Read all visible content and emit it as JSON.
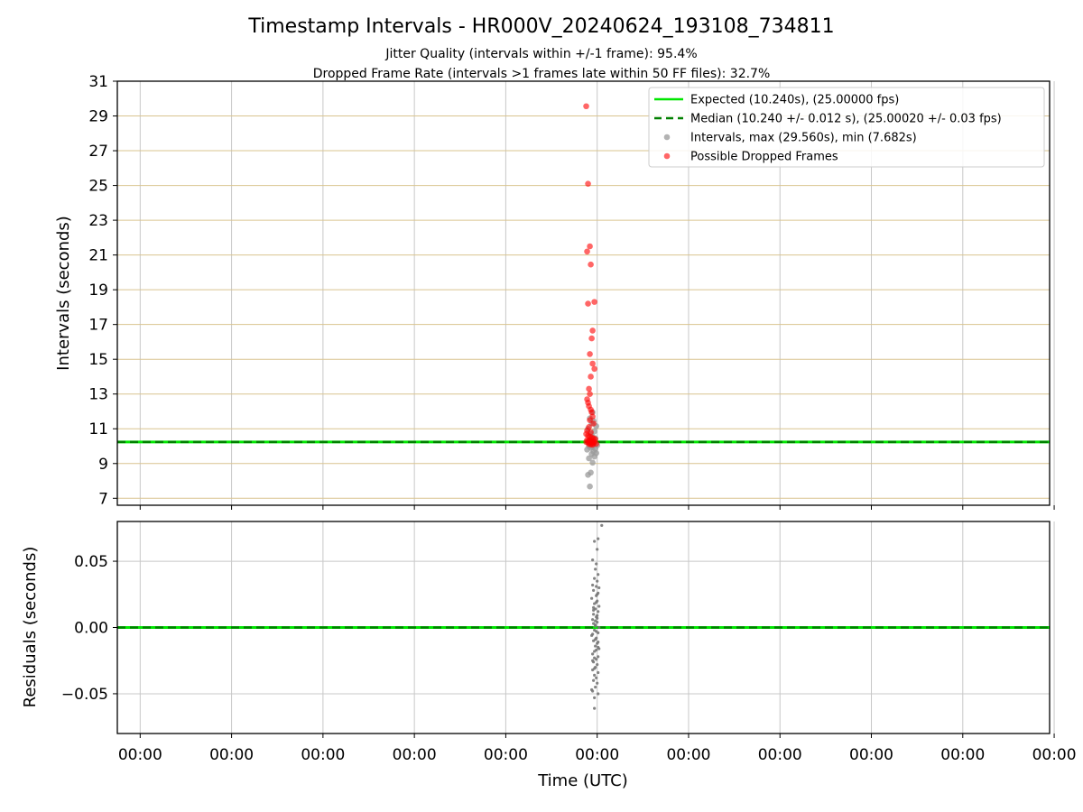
{
  "chart_data": [
    {
      "type": "scatter",
      "title": "Timestamp Intervals - HR000V_20240624_193108_734811",
      "subtitle_lines": [
        "Jitter Quality (intervals within +/-1 frame): 95.4%",
        "Dropped Frame Rate (intervals >1 frames late within 50 FF files): 32.7%"
      ],
      "ylabel": "Intervals (seconds)",
      "ylim": [
        6.6,
        31.0
      ],
      "yticks": [
        7,
        9,
        11,
        13,
        15,
        17,
        19,
        21,
        23,
        25,
        27,
        29,
        31
      ],
      "ytick_labels": [
        "7",
        "9",
        "11",
        "13",
        "15",
        "17",
        "19",
        "21",
        "23",
        "25",
        "27",
        "29",
        "31"
      ],
      "xlim": [
        0,
        10.2
      ],
      "xticks": [
        0.25,
        1.25,
        2.25,
        3.25,
        4.25,
        5.25,
        6.25,
        7.25,
        8.25,
        9.25,
        10.25
      ],
      "grid": true,
      "legend_position": "top-right",
      "lines": [
        {
          "name": "Expected (10.240s), (25.00000 fps)",
          "y": 10.24,
          "color": "#00e600",
          "style": "solid"
        },
        {
          "name": "Median (10.240 +/- 0.012 s), (25.00020 +/- 0.03 fps)",
          "y": 10.24,
          "color": "#008000",
          "style": "dashed"
        }
      ],
      "series": [
        {
          "name": "Intervals, max (29.560s), min (7.682s)",
          "color": "#999999",
          "x": [
            5.17,
            5.15,
            5.18,
            5.2,
            5.16,
            5.22,
            5.19,
            5.24,
            5.21,
            5.14,
            5.23,
            5.18,
            5.2,
            5.16,
            5.25,
            5.19,
            5.21,
            5.17,
            5.23,
            5.2,
            5.18,
            5.22,
            5.15,
            5.24,
            5.19,
            5.21,
            5.17,
            5.2
          ],
          "y": [
            7.68,
            8.35,
            8.48,
            9.05,
            9.3,
            9.4,
            9.55,
            9.6,
            9.7,
            9.8,
            9.85,
            9.9,
            9.95,
            10.0,
            10.05,
            10.1,
            10.15,
            10.35,
            10.45,
            10.55,
            10.7,
            10.85,
            11.0,
            11.15,
            11.3,
            11.45,
            11.6,
            11.95
          ]
        },
        {
          "name": "Possible Dropped Frames",
          "color": "#ff0000",
          "x": [
            5.13,
            5.15,
            5.17,
            5.14,
            5.18,
            5.22,
            5.15,
            5.2,
            5.19,
            5.17,
            5.2,
            5.22,
            5.18,
            5.16,
            5.17,
            5.14,
            5.15,
            5.16,
            5.18,
            5.19,
            5.2,
            5.17,
            5.21,
            5.16,
            5.14,
            5.18,
            5.13,
            5.15,
            5.17,
            5.19,
            5.21,
            5.23,
            5.14,
            5.16,
            5.18,
            5.2,
            5.22,
            5.13,
            5.15,
            5.17,
            5.19,
            5.21,
            5.24,
            5.16,
            5.18,
            5.2
          ],
          "y": [
            29.56,
            25.1,
            21.5,
            21.2,
            20.45,
            18.3,
            18.2,
            16.65,
            16.2,
            15.3,
            14.75,
            14.45,
            14.0,
            13.3,
            13.0,
            12.7,
            12.5,
            12.3,
            12.1,
            11.95,
            11.7,
            11.5,
            11.3,
            11.1,
            10.9,
            10.8,
            10.7,
            10.6,
            10.55,
            10.5,
            10.45,
            10.4,
            10.35,
            10.32,
            10.3,
            10.28,
            10.26,
            10.24,
            10.22,
            10.2,
            10.18,
            10.16,
            10.14,
            10.12,
            10.1,
            10.08
          ]
        }
      ]
    },
    {
      "type": "scatter",
      "ylabel": "Residuals (seconds)",
      "xlabel": "Time (UTC)",
      "ylim": [
        -0.08,
        0.08
      ],
      "yticks": [
        -0.05,
        0.0,
        0.05
      ],
      "ytick_labels": [
        "−0.05",
        "0.00",
        "0.05"
      ],
      "xlim": [
        0,
        10.2
      ],
      "xticks": [
        0.25,
        1.25,
        2.25,
        3.25,
        4.25,
        5.25,
        6.25,
        7.25,
        8.25,
        9.25,
        10.25
      ],
      "xtick_labels": [
        "00:00",
        "00:00",
        "00:00",
        "00:00",
        "00:00",
        "00:00",
        "00:00",
        "00:00",
        "00:00",
        "00:00",
        "00:00"
      ],
      "grid": true,
      "lines": [
        {
          "y": 0.0,
          "color": "#00e600",
          "style": "solid"
        },
        {
          "y": 0.0,
          "color": "#008000",
          "style": "dashed"
        }
      ],
      "series": [
        {
          "name": "Residuals",
          "color": "#777777",
          "x": [
            5.3,
            5.22,
            5.26,
            5.25,
            5.2,
            5.24,
            5.23,
            5.26,
            5.22,
            5.25,
            5.2,
            5.27,
            5.21,
            5.26,
            5.24,
            5.19,
            5.25,
            5.22,
            5.27,
            5.23,
            5.26,
            5.21,
            5.24,
            5.2,
            5.25,
            5.23,
            5.27,
            5.22,
            5.26,
            5.19,
            5.24,
            5.21,
            5.25,
            5.23,
            5.27,
            5.22,
            5.2,
            5.26,
            5.24,
            5.21,
            5.25,
            5.23,
            5.2,
            5.26,
            5.22,
            5.24,
            5.21,
            5.25,
            5.23,
            5.2,
            5.26,
            5.22,
            5.24,
            5.21,
            5.25,
            5.23,
            5.2,
            5.26,
            5.24,
            5.22,
            5.25,
            5.21,
            5.23,
            5.26,
            5.2,
            5.24,
            5.22,
            5.25,
            5.23,
            5.21,
            5.24,
            5.19,
            5.22
          ],
          "y": [
            0.077,
            0.065,
            0.067,
            0.059,
            0.051,
            0.048,
            0.044,
            0.04,
            0.037,
            0.035,
            0.032,
            0.03,
            0.028,
            0.026,
            0.024,
            0.022,
            0.02,
            0.018,
            0.016,
            0.014,
            0.012,
            0.01,
            0.008,
            0.006,
            0.004,
            0.002,
            0.0,
            -0.002,
            -0.004,
            -0.006,
            -0.008,
            -0.01,
            -0.012,
            -0.014,
            -0.016,
            -0.018,
            -0.02,
            -0.022,
            -0.024,
            -0.026,
            -0.028,
            -0.03,
            -0.032,
            -0.034,
            -0.036,
            -0.038,
            -0.04,
            -0.042,
            -0.045,
            -0.048,
            -0.05,
            -0.053,
            0.019,
            0.013,
            0.007,
            0.001,
            -0.005,
            -0.011,
            -0.017,
            -0.023,
            0.025,
            0.015,
            0.005,
            -0.015,
            -0.025,
            0.031,
            -0.031,
            0.009,
            -0.009,
            0.003,
            -0.003,
            -0.047,
            -0.061
          ]
        }
      ]
    }
  ]
}
